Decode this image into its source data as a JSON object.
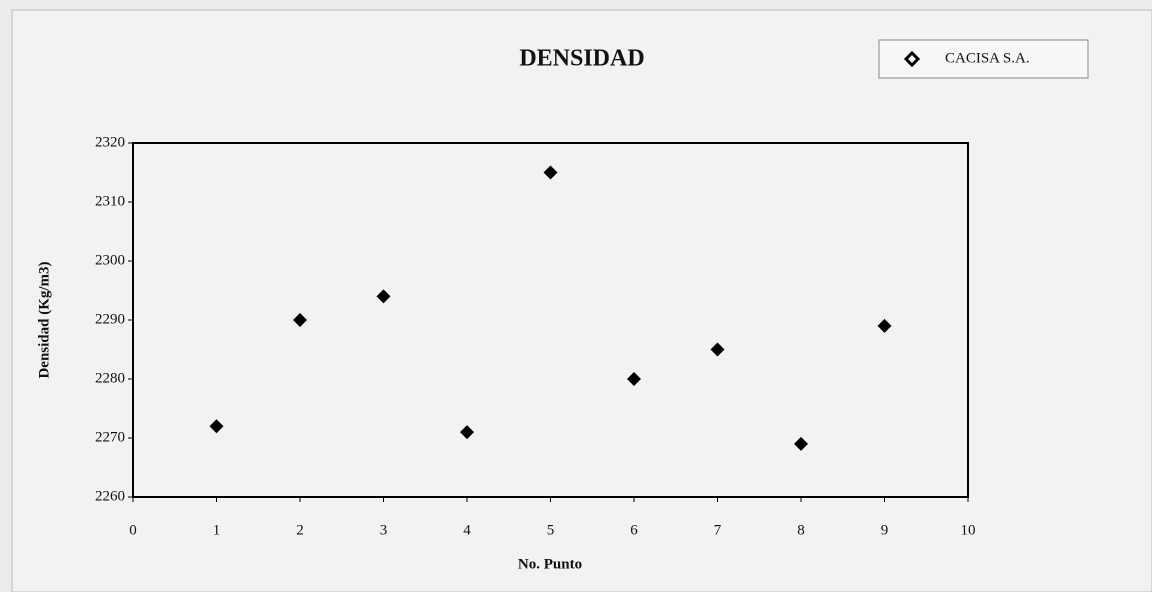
{
  "chart_data": {
    "type": "scatter",
    "title": "DENSIDAD",
    "x_label": "No. Punto",
    "y_label": "Densidad (Kg/m3)",
    "x": [
      1,
      2,
      3,
      4,
      5,
      6,
      7,
      8,
      9
    ],
    "series": [
      {
        "name": "CACISA S.A.",
        "color": "#000000",
        "values": [
          2272,
          2290,
          2294,
          2271,
          2315,
          2280,
          2285,
          2269,
          2289
        ]
      }
    ],
    "xlim": [
      0,
      10
    ],
    "xticks": [
      0,
      1,
      2,
      3,
      4,
      5,
      6,
      7,
      8,
      9,
      10
    ],
    "ylim": [
      2260,
      2320
    ],
    "yticks": [
      2260,
      2270,
      2280,
      2290,
      2300,
      2310,
      2320
    ],
    "grid": false,
    "legend": "top-right"
  }
}
